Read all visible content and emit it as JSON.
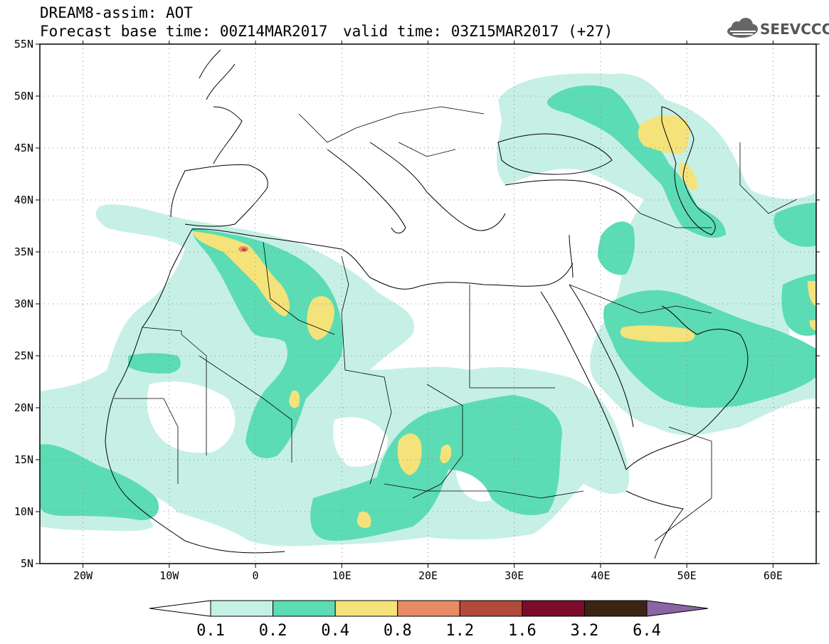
{
  "header": {
    "title": "DREAM8-assim: AOT",
    "base_time": "Forecast base time: 00Z14MAR2017",
    "valid_time": "valid time: 03Z15MAR2017 (+27)"
  },
  "logo": {
    "text": "SEEVCCC",
    "icon": "cloud-logo-icon"
  },
  "map": {
    "lon_range": [
      -25,
      65
    ],
    "lat_range": [
      5,
      55
    ],
    "lat_ticks": [
      {
        "value": 55,
        "label": "55N"
      },
      {
        "value": 50,
        "label": "50N"
      },
      {
        "value": 45,
        "label": "45N"
      },
      {
        "value": 40,
        "label": "40N"
      },
      {
        "value": 35,
        "label": "35N"
      },
      {
        "value": 30,
        "label": "30N"
      },
      {
        "value": 25,
        "label": "25N"
      },
      {
        "value": 20,
        "label": "20N"
      },
      {
        "value": 15,
        "label": "15N"
      },
      {
        "value": 10,
        "label": "10N"
      },
      {
        "value": 5,
        "label": "5N"
      }
    ],
    "lon_ticks": [
      {
        "value": -20,
        "label": "20W"
      },
      {
        "value": -10,
        "label": "10W"
      },
      {
        "value": 0,
        "label": "0"
      },
      {
        "value": 10,
        "label": "10E"
      },
      {
        "value": 20,
        "label": "20E"
      },
      {
        "value": 30,
        "label": "30E"
      },
      {
        "value": 40,
        "label": "40E"
      },
      {
        "value": 50,
        "label": "50E"
      },
      {
        "value": 60,
        "label": "60E"
      }
    ],
    "gridlines": "dotted"
  },
  "colorbar": {
    "labels": [
      "0.1",
      "0.2",
      "0.4",
      "0.8",
      "1.2",
      "1.6",
      "3.2",
      "6.4"
    ],
    "colors": [
      "#ffffff",
      "#c6f0e6",
      "#5cdcb4",
      "#f4e37a",
      "#e88a64",
      "#b04a3c",
      "#7c0c2c",
      "#3c2414",
      "#8c64a4"
    ]
  },
  "fields": {
    "level1_color": "#c6f0e6",
    "level2_color": "#5cdcb4",
    "level3_color": "#f4e37a",
    "level4_color": "#e88a64",
    "level5_color": "#b04a3c"
  }
}
